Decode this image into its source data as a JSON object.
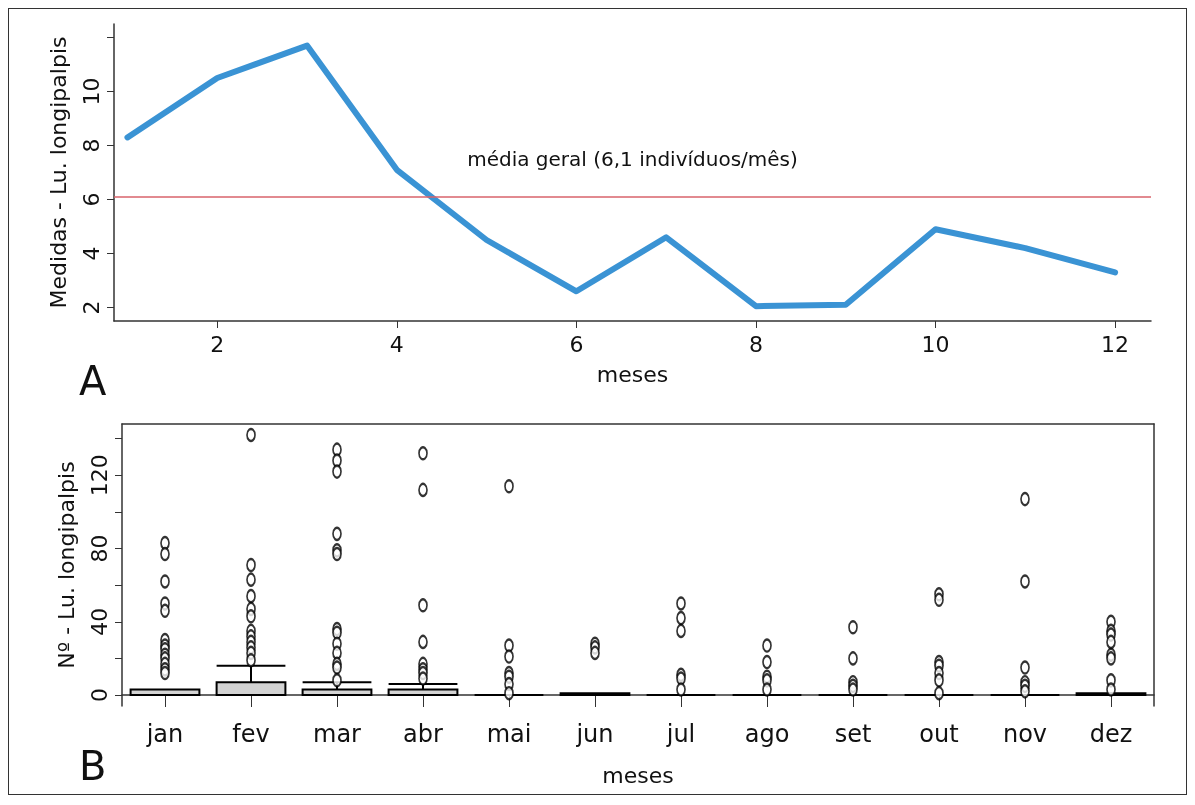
{
  "chart_data": [
    {
      "type": "line",
      "xlabel": "meses",
      "ylabel": "Medidas - Lu. longipalpis",
      "annotations": [
        "A"
      ],
      "x": [
        1,
        2,
        3,
        4,
        5,
        6,
        7,
        8,
        9,
        10,
        11,
        12
      ],
      "series": [
        {
          "color": "#3a93d4",
          "values": [
            8.3,
            10.5,
            11.7,
            7.1,
            4.5,
            2.6,
            4.6,
            2.05,
            2.1,
            4.9,
            4.2,
            3.3
          ]
        }
      ],
      "xlim": [
        0.85,
        12.4
      ],
      "xticks": [
        2,
        4,
        6,
        8,
        10,
        12
      ],
      "ylim": [
        1.5,
        12.5
      ],
      "yticks": [
        2,
        4,
        6,
        8,
        10,
        {
          "value": 12,
          "label": null
        }
      ],
      "ref_lines": [
        {
          "axis": "y",
          "value": 6.1,
          "label": "média geral (6,1 indivíduos/mês)",
          "color": "#d9636b"
        }
      ],
      "grid": false,
      "marker": "none",
      "line_style": "solid"
    },
    {
      "type": "box",
      "xlabel": "meses",
      "ylabel": "Nº - Lu. longipalpis",
      "annotations": [
        "B"
      ],
      "colors": [
        "#d3d3d3",
        "#d3d3d3",
        "#d3d3d3",
        "#d3d3d3",
        "#000000",
        "#000000",
        "#000000",
        "#000000",
        "#000000",
        "#000000",
        "#000000",
        "#000000"
      ],
      "categories": [
        "jan",
        "fev",
        "mar",
        "abr",
        "mai",
        "jun",
        "jul",
        "ago",
        "set",
        "out",
        "nov",
        "dez"
      ],
      "boxes": [
        {
          "low": 0,
          "q1": 0,
          "median": 0,
          "q3": 3,
          "high": 3,
          "outliers": [
            83,
            77,
            62,
            50,
            46,
            30,
            27,
            25,
            22,
            20,
            17,
            14,
            12
          ]
        },
        {
          "low": 0,
          "q1": 0,
          "median": 0,
          "q3": 7,
          "high": 16,
          "outliers": [
            142,
            71,
            63,
            54,
            47,
            43,
            35,
            32,
            29,
            26,
            23,
            19
          ]
        },
        {
          "low": 0,
          "q1": 0,
          "median": 0,
          "q3": 3,
          "high": 7,
          "outliers": [
            134,
            128,
            122,
            88,
            79,
            77,
            36,
            34,
            28,
            23,
            17,
            15,
            8
          ]
        },
        {
          "low": 0,
          "q1": 0,
          "median": 0,
          "q3": 3,
          "high": 6,
          "outliers": [
            132,
            112,
            49,
            29,
            17,
            14,
            12,
            9
          ]
        },
        {
          "low": 0,
          "q1": 0,
          "median": 0,
          "q3": 0,
          "high": 0,
          "outliers": [
            114,
            27,
            21,
            12,
            10,
            6,
            1
          ]
        },
        {
          "low": 0,
          "q1": 0,
          "median": 0,
          "q3": 1,
          "high": 1,
          "outliers": [
            28,
            26,
            23
          ]
        },
        {
          "low": 0,
          "q1": 0,
          "median": 0,
          "q3": 0,
          "high": 0,
          "outliers": [
            50,
            42,
            35,
            11,
            9,
            3
          ]
        },
        {
          "low": 0,
          "q1": 0,
          "median": 0,
          "q3": 0,
          "high": 0,
          "outliers": [
            27,
            18,
            10,
            8,
            3
          ]
        },
        {
          "low": 0,
          "q1": 0,
          "median": 0,
          "q3": 0,
          "high": 0,
          "outliers": [
            37,
            20,
            7,
            5,
            3
          ]
        },
        {
          "low": 0,
          "q1": 0,
          "median": 0,
          "q3": 0,
          "high": 0,
          "outliers": [
            55,
            52,
            18,
            16,
            12,
            8,
            1
          ]
        },
        {
          "low": 0,
          "q1": 0,
          "median": 0,
          "q3": 0,
          "high": 0,
          "outliers": [
            107,
            62,
            15,
            7,
            5,
            2
          ]
        },
        {
          "low": 0,
          "q1": 0,
          "median": 0,
          "q3": 1,
          "high": 1,
          "outliers": [
            40,
            35,
            33,
            29,
            22,
            20,
            8,
            3
          ]
        }
      ],
      "ylim": [
        -6,
        148
      ],
      "yticks": [
        0,
        {
          "value": 20,
          "label": null
        },
        40,
        {
          "value": 60,
          "label": null
        },
        80,
        {
          "value": 100,
          "label": null
        },
        120,
        {
          "value": 140,
          "label": null
        }
      ],
      "grid": false
    }
  ]
}
